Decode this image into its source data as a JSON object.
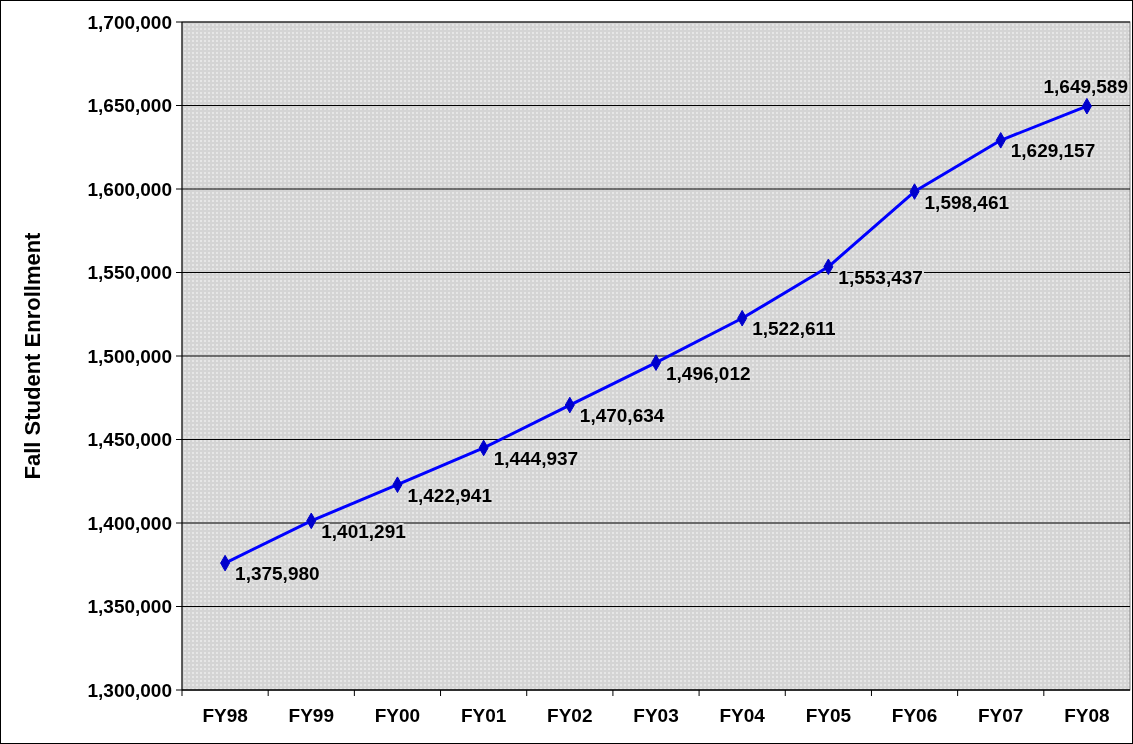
{
  "chart_data": {
    "type": "line",
    "ylabel": "Fall Student Enrollment",
    "categories": [
      "FY98",
      "FY99",
      "FY00",
      "FY01",
      "FY02",
      "FY03",
      "FY04",
      "FY05",
      "FY06",
      "FY07",
      "FY08"
    ],
    "series": [
      {
        "color": "#0000ff",
        "values": [
          1375980,
          1401291,
          1422941,
          1444937,
          1470634,
          1496012,
          1522611,
          1553437,
          1598461,
          1629157,
          1649589
        ],
        "value_labels": [
          "1,375,980",
          "1,401,291",
          "1,422,941",
          "1,444,937",
          "1,470,634",
          "1,496,012",
          "1,522,611",
          "1,553,437",
          "1,598,461",
          "1,629,157",
          "1,649,589"
        ]
      }
    ],
    "ylim": [
      1300000,
      1700000
    ],
    "yticks": [
      {
        "value": 1300000,
        "label": "1,300,000"
      },
      {
        "value": 1350000,
        "label": "1,350,000"
      },
      {
        "value": 1400000,
        "label": "1,400,000"
      },
      {
        "value": 1450000,
        "label": "1,450,000"
      },
      {
        "value": 1500000,
        "label": "1,500,000"
      },
      {
        "value": 1550000,
        "label": "1,550,000"
      },
      {
        "value": 1600000,
        "label": "1,600,000"
      },
      {
        "value": 1650000,
        "label": "1,650,000"
      },
      {
        "value": 1700000,
        "label": "1,700,000"
      }
    ],
    "grid": "y",
    "marker": "diamond",
    "line_style": "solid"
  }
}
